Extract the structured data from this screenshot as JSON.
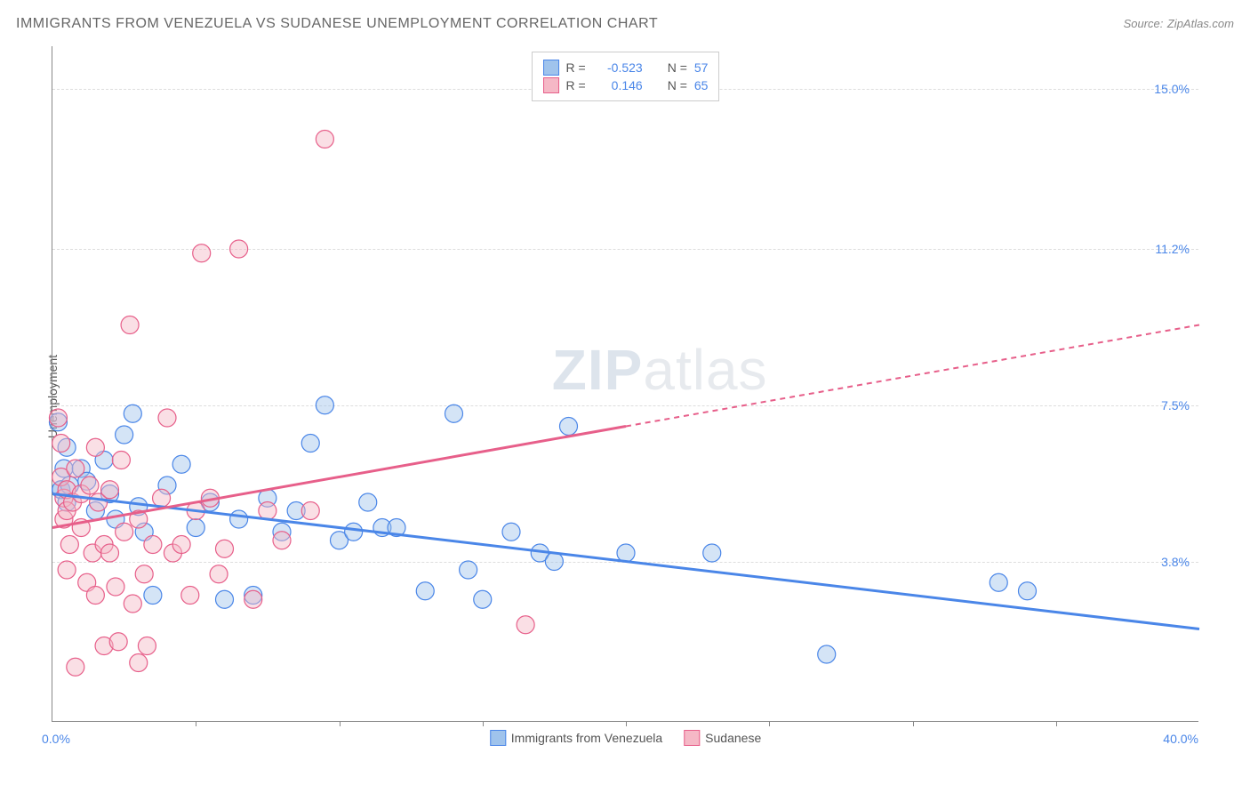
{
  "title": "IMMIGRANTS FROM VENEZUELA VS SUDANESE UNEMPLOYMENT CORRELATION CHART",
  "source_label": "Source:",
  "source_value": "ZipAtlas.com",
  "y_axis_label": "Unemployment",
  "watermark_bold": "ZIP",
  "watermark_rest": "atlas",
  "chart": {
    "type": "scatter",
    "background_color": "#ffffff",
    "grid_color": "#dddddd",
    "axis_color": "#888888",
    "xlim": [
      0.0,
      40.0
    ],
    "ylim": [
      0.0,
      16.0
    ],
    "x_min_label": "0.0%",
    "x_max_label": "40.0%",
    "x_tick_step": 5.0,
    "y_ticks": [
      {
        "value": 15.0,
        "label": "15.0%"
      },
      {
        "value": 11.2,
        "label": "11.2%"
      },
      {
        "value": 7.5,
        "label": "7.5%"
      },
      {
        "value": 3.8,
        "label": "3.8%"
      }
    ],
    "tick_label_color": "#4a86e8",
    "marker_radius": 10,
    "marker_opacity": 0.45,
    "line_width": 3,
    "series": [
      {
        "id": "venezuela",
        "label": "Immigrants from Venezuela",
        "color_fill": "#9fc3ec",
        "color_stroke": "#4a86e8",
        "R": "-0.523",
        "N": "57",
        "trend": {
          "x1": 0.0,
          "y1": 5.4,
          "x2": 40.0,
          "y2": 2.2,
          "dashed_from_x": null
        },
        "points": [
          [
            0.2,
            7.1
          ],
          [
            0.3,
            5.5
          ],
          [
            0.3,
            5.5
          ],
          [
            0.4,
            6.0
          ],
          [
            0.5,
            6.5
          ],
          [
            0.5,
            5.2
          ],
          [
            0.6,
            5.6
          ],
          [
            1.0,
            6.0
          ],
          [
            1.2,
            5.7
          ],
          [
            1.5,
            5.0
          ],
          [
            1.8,
            6.2
          ],
          [
            2.0,
            5.4
          ],
          [
            2.2,
            4.8
          ],
          [
            2.5,
            6.8
          ],
          [
            2.8,
            7.3
          ],
          [
            3.0,
            5.1
          ],
          [
            3.2,
            4.5
          ],
          [
            3.5,
            3.0
          ],
          [
            4.0,
            5.6
          ],
          [
            4.5,
            6.1
          ],
          [
            5.0,
            4.6
          ],
          [
            5.5,
            5.2
          ],
          [
            6.0,
            2.9
          ],
          [
            6.5,
            4.8
          ],
          [
            7.0,
            3.0
          ],
          [
            7.5,
            5.3
          ],
          [
            8.0,
            4.5
          ],
          [
            8.5,
            5.0
          ],
          [
            9.0,
            6.6
          ],
          [
            9.5,
            7.5
          ],
          [
            10.0,
            4.3
          ],
          [
            10.5,
            4.5
          ],
          [
            11.0,
            5.2
          ],
          [
            11.5,
            4.6
          ],
          [
            12.0,
            4.6
          ],
          [
            13.0,
            3.1
          ],
          [
            14.0,
            7.3
          ],
          [
            14.5,
            3.6
          ],
          [
            15.0,
            2.9
          ],
          [
            16.0,
            4.5
          ],
          [
            17.0,
            4.0
          ],
          [
            17.5,
            3.8
          ],
          [
            18.0,
            7.0
          ],
          [
            20.0,
            4.0
          ],
          [
            23.0,
            4.0
          ],
          [
            27.0,
            1.6
          ],
          [
            33.0,
            3.3
          ],
          [
            34.0,
            3.1
          ]
        ]
      },
      {
        "id": "sudanese",
        "label": "Sudanese",
        "color_fill": "#f5b8c6",
        "color_stroke": "#e75f8a",
        "R": "0.146",
        "N": "65",
        "trend": {
          "x1": 0.0,
          "y1": 4.6,
          "x2": 40.0,
          "y2": 9.4,
          "dashed_from_x": 20.0
        },
        "points": [
          [
            0.2,
            7.2
          ],
          [
            0.3,
            6.6
          ],
          [
            0.3,
            5.8
          ],
          [
            0.4,
            5.3
          ],
          [
            0.4,
            4.8
          ],
          [
            0.5,
            5.0
          ],
          [
            0.5,
            5.5
          ],
          [
            0.5,
            3.6
          ],
          [
            0.6,
            4.2
          ],
          [
            0.7,
            5.2
          ],
          [
            0.8,
            1.3
          ],
          [
            0.8,
            6.0
          ],
          [
            1.0,
            5.4
          ],
          [
            1.0,
            4.6
          ],
          [
            1.2,
            3.3
          ],
          [
            1.3,
            5.6
          ],
          [
            1.4,
            4.0
          ],
          [
            1.5,
            6.5
          ],
          [
            1.5,
            3.0
          ],
          [
            1.6,
            5.2
          ],
          [
            1.8,
            4.2
          ],
          [
            1.8,
            1.8
          ],
          [
            2.0,
            5.5
          ],
          [
            2.0,
            4.0
          ],
          [
            2.2,
            3.2
          ],
          [
            2.3,
            1.9
          ],
          [
            2.4,
            6.2
          ],
          [
            2.5,
            4.5
          ],
          [
            2.7,
            9.4
          ],
          [
            2.8,
            2.8
          ],
          [
            3.0,
            4.8
          ],
          [
            3.0,
            1.4
          ],
          [
            3.2,
            3.5
          ],
          [
            3.3,
            1.8
          ],
          [
            3.5,
            4.2
          ],
          [
            3.8,
            5.3
          ],
          [
            4.0,
            7.2
          ],
          [
            4.2,
            4.0
          ],
          [
            4.5,
            4.2
          ],
          [
            4.8,
            3.0
          ],
          [
            5.0,
            5.0
          ],
          [
            5.2,
            11.1
          ],
          [
            5.5,
            5.3
          ],
          [
            5.8,
            3.5
          ],
          [
            6.0,
            4.1
          ],
          [
            6.5,
            11.2
          ],
          [
            7.0,
            2.9
          ],
          [
            7.5,
            5.0
          ],
          [
            8.0,
            4.3
          ],
          [
            9.0,
            5.0
          ],
          [
            9.5,
            13.8
          ],
          [
            16.5,
            2.3
          ]
        ]
      }
    ],
    "legend_top": {
      "r_label": "R =",
      "n_label": "N ="
    }
  }
}
